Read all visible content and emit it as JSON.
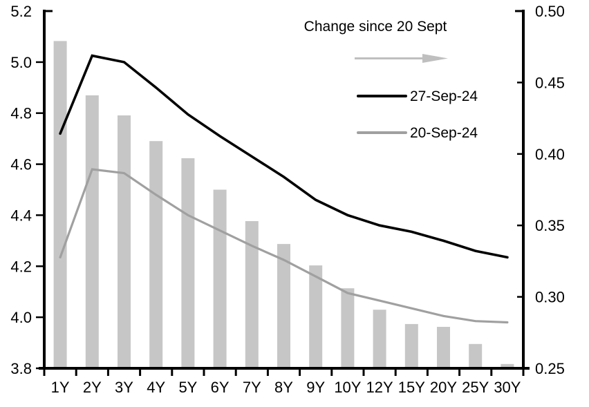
{
  "chart_data": {
    "type": "bar",
    "subtype": "combo-bar-line-dual-axis",
    "title": "",
    "xlabel": "",
    "ylabel": "",
    "grid": false,
    "categories": [
      "1Y",
      "2Y",
      "3Y",
      "4Y",
      "5Y",
      "6Y",
      "7Y",
      "8Y",
      "9Y",
      "10Y",
      "12Y",
      "15Y",
      "20Y",
      "25Y",
      "30Y"
    ],
    "series": [
      {
        "name": "Change since 20 Sept",
        "type": "bar",
        "axis": "right",
        "color": "#c6c6c6",
        "values": [
          0.479,
          0.441,
          0.427,
          0.409,
          0.397,
          0.375,
          0.353,
          0.337,
          0.322,
          0.306,
          0.291,
          0.281,
          0.279,
          0.267,
          0.253
        ]
      },
      {
        "name": "27-Sep-24",
        "type": "line",
        "axis": "left",
        "color": "#000000",
        "values": [
          4.72,
          5.025,
          5.0,
          4.9,
          4.795,
          4.71,
          4.63,
          4.55,
          4.46,
          4.4,
          4.36,
          4.335,
          4.3,
          4.26,
          4.235
        ]
      },
      {
        "name": "20-Sep-24",
        "type": "line",
        "axis": "left",
        "color": "#a0a0a0",
        "values": [
          4.235,
          4.58,
          4.565,
          4.48,
          4.4,
          4.34,
          4.28,
          4.225,
          4.16,
          4.095,
          4.065,
          4.035,
          4.005,
          3.985,
          3.98
        ]
      }
    ],
    "left_axis": {
      "min": 3.8,
      "max": 5.2,
      "step": 0.2,
      "tick_labels": [
        "5.2",
        "5.0",
        "4.8",
        "4.6",
        "4.4",
        "4.2",
        "4.0",
        "3.8"
      ]
    },
    "right_axis": {
      "min": 0.25,
      "max": 0.5,
      "step": 0.05,
      "tick_labels": [
        "0.50",
        "0.45",
        "0.40",
        "0.35",
        "0.30",
        "0.25"
      ]
    },
    "legend": {
      "position": "top-right",
      "title": "Change since 20 Sept",
      "arrow_color": "#bfbfbf",
      "entries": [
        {
          "label": "27-Sep-24",
          "color": "#000000"
        },
        {
          "label": "20-Sep-24",
          "color": "#a0a0a0"
        }
      ]
    }
  }
}
